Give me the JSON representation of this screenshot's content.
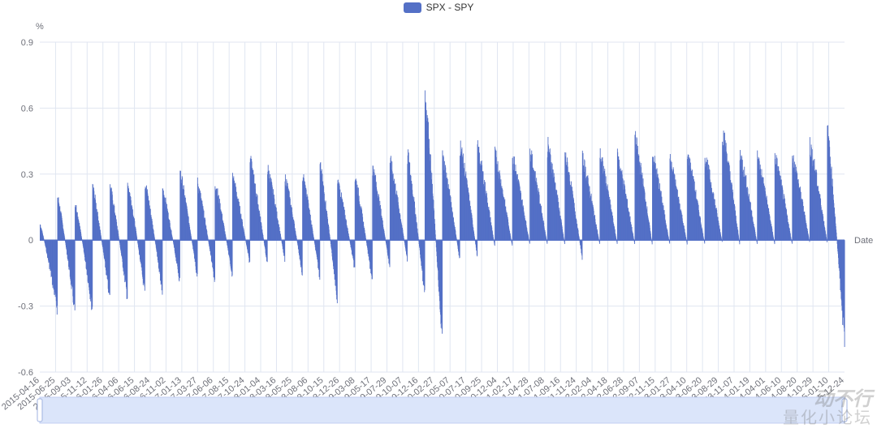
{
  "chart_data": {
    "type": "bar",
    "legend": {
      "entries": [
        "SPX - SPY"
      ],
      "placement": "top-center"
    },
    "ylabel": "%",
    "xlabel": "Date",
    "ylim": [
      -0.6,
      0.9
    ],
    "yticks": [
      "0.9",
      "0.6",
      "0.3",
      "0",
      "-0.3",
      "-0.6"
    ],
    "grid": true,
    "x_range": [
      "2015-04-16",
      "2025-12-24"
    ],
    "x_tick_labels": [
      "2015-04-16",
      "2015-06-25",
      "2015-09-03",
      "2015-11-12",
      "2016-01-26",
      "2016-04-06",
      "2016-06-15",
      "2016-08-24",
      "2016-11-02",
      "2017-01-13",
      "2017-03-27",
      "2017-06-06",
      "2017-08-15",
      "2017-10-24",
      "2018-01-04",
      "2018-03-16",
      "2018-05-25",
      "2018-08-06",
      "2018-10-15",
      "2018-12-26",
      "2019-03-08",
      "2019-05-17",
      "2019-07-29",
      "2019-10-07",
      "2019-12-16",
      "2020-02-27",
      "2020-05-07",
      "2020-07-17",
      "2020-09-25",
      "2020-12-04",
      "2021-02-17",
      "2021-04-28",
      "2021-07-08",
      "2021-09-16",
      "2021-11-24",
      "2022-02-04",
      "2022-04-18",
      "2022-06-28",
      "2022-09-07",
      "2022-11-15",
      "2023-01-27",
      "2023-04-10",
      "2023-06-20",
      "2023-08-29",
      "2023-11-07",
      "2024-01-19",
      "2024-04-01",
      "2024-06-10",
      "2024-08-20",
      "2024-10-29",
      "2025-01-10",
      "2025-12-24"
    ],
    "series": [
      {
        "name": "SPX - SPY",
        "color": "#5470c6",
        "pattern": "quarterly dividend cycle: spread jumps up after each ex-dividend date and decays to negative before the next",
        "cycle_peaks": [
          0.08,
          0.22,
          0.19,
          0.27,
          0.27,
          0.29,
          0.29,
          0.26,
          0.34,
          0.29,
          0.29,
          0.32,
          0.4,
          0.36,
          0.32,
          0.33,
          0.37,
          0.3,
          0.32,
          0.37,
          0.4,
          0.43,
          0.74,
          0.42,
          0.48,
          0.46,
          0.43,
          0.42,
          0.44,
          0.48,
          0.43,
          0.41,
          0.43,
          0.42,
          0.51,
          0.43,
          0.4,
          0.43,
          0.42,
          0.55,
          0.44,
          0.42,
          0.42,
          0.42,
          0.48,
          0.55
        ],
        "cycle_troughs": [
          -0.35,
          -0.36,
          -0.35,
          -0.3,
          -0.29,
          -0.27,
          -0.26,
          -0.21,
          -0.19,
          -0.21,
          -0.18,
          -0.12,
          -0.12,
          -0.1,
          -0.17,
          -0.19,
          -0.3,
          -0.15,
          -0.21,
          -0.14,
          -0.1,
          -0.28,
          -0.52,
          -0.1,
          -0.08,
          -0.03,
          -0.03,
          -0.02,
          -0.02,
          -0.02,
          -0.09,
          -0.02,
          -0.02,
          -0.02,
          -0.02,
          -0.02,
          -0.02,
          -0.02,
          -0.01,
          -0.02,
          -0.02,
          -0.02,
          -0.02,
          -0.01,
          -0.01,
          -0.53
        ]
      }
    ],
    "dataZoom": {
      "range": [
        "2015-04-16",
        "2025-12-24"
      ]
    }
  },
  "watermark": {
    "line1": "动不行",
    "line2": "量化小论坛"
  }
}
